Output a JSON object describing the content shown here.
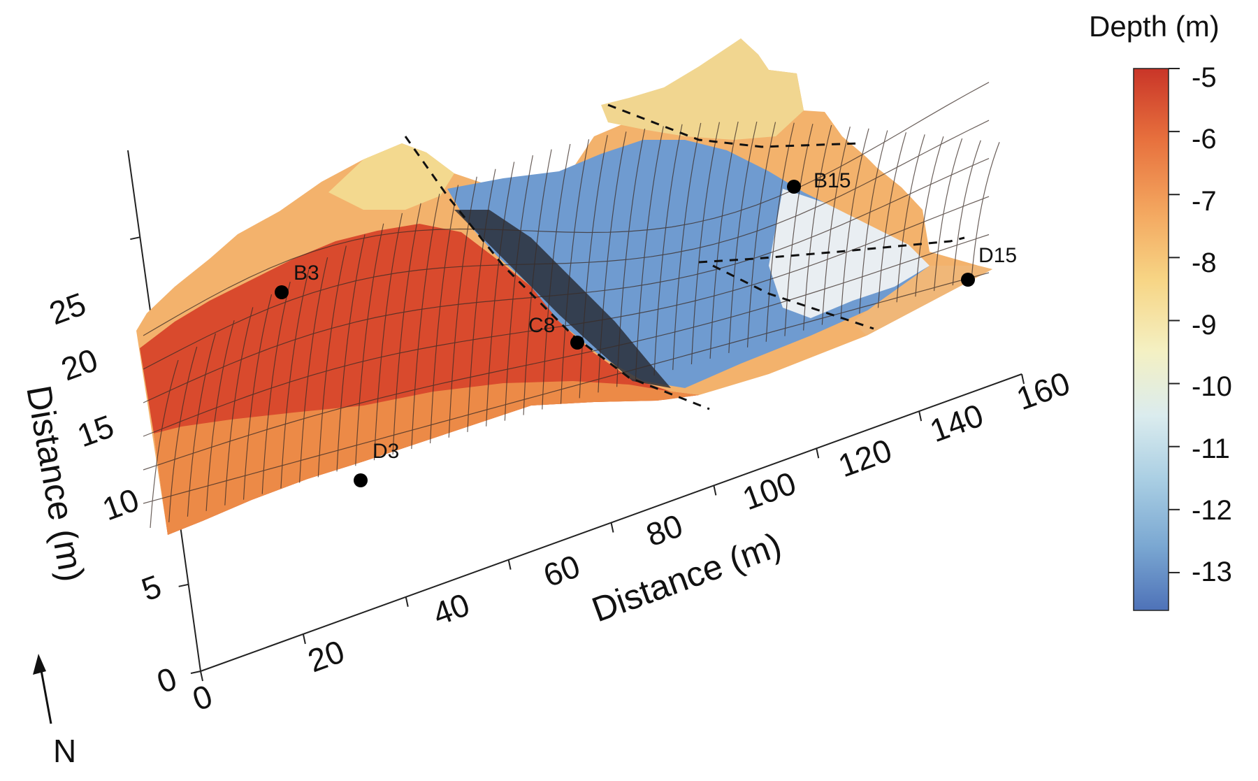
{
  "chart_data": {
    "type": "surface",
    "x_axis": {
      "label": "Distance (m)",
      "ticks": [
        "0",
        "20",
        "40",
        "60",
        "80",
        "100",
        "120",
        "140",
        "160"
      ],
      "range": [
        0,
        160
      ]
    },
    "y_axis": {
      "label": "Distance (m)",
      "ticks": [
        "0",
        "5",
        "10",
        "15",
        "20",
        "25"
      ],
      "range": [
        0,
        30
      ]
    },
    "colorbar": {
      "title": "Depth (m)",
      "ticks": [
        "-5",
        "-6",
        "-7",
        "-8",
        "-9",
        "-10",
        "-11",
        "-12",
        "-13"
      ],
      "range": [
        -5,
        -13.6
      ],
      "colors": [
        "#c93528",
        "#e7703d",
        "#f3a55e",
        "#f7d585",
        "#f4f0c2",
        "#dbecee",
        "#a9cee3",
        "#7ba8d2",
        "#4e72b8"
      ]
    },
    "points": [
      {
        "label": "B3",
        "x": 15,
        "y": 25
      },
      {
        "label": "D3",
        "x": 28,
        "y": 12
      },
      {
        "label": "C8",
        "x": 75,
        "y": 20
      },
      {
        "label": "B15",
        "x": 130,
        "y": 25
      },
      {
        "label": "D15",
        "x": 158,
        "y": 18
      }
    ],
    "north_label": "N"
  }
}
